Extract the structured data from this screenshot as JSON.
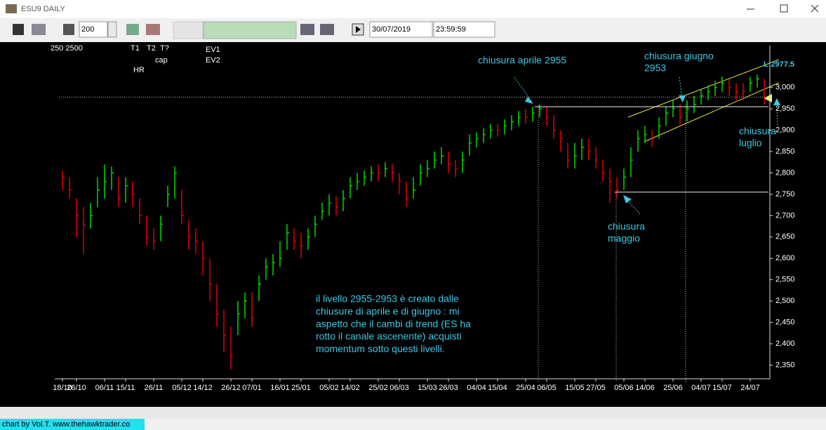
{
  "window": {
    "title": "ESU9 DAILY",
    "bars": "200",
    "date": "30/07/2019",
    "time": "23:59:59",
    "footer": "chart by Vol.T. www.thehawktrader.co",
    "tools": [
      "250 2500",
      "T1",
      "T2",
      "T?",
      "EV1",
      "EV2",
      "HR",
      "cap"
    ]
  },
  "chart_data": {
    "type": "ohlc",
    "xlim": [
      -0.5,
      100.5
    ],
    "xticks": [
      {
        "value": 0,
        "label": "18/10"
      },
      {
        "value": 2,
        "label": "26/10"
      },
      {
        "value": 6,
        "label": "06/11"
      },
      {
        "value": 9,
        "label": "15/11"
      },
      {
        "value": 13,
        "label": "26/11"
      },
      {
        "value": 17,
        "label": "05/12"
      },
      {
        "value": 20,
        "label": "14/12"
      },
      {
        "value": 24,
        "label": "26/12"
      },
      {
        "value": 27,
        "label": "07/01"
      },
      {
        "value": 31,
        "label": "16/01"
      },
      {
        "value": 34,
        "label": "25/01"
      },
      {
        "value": 38,
        "label": "05/02"
      },
      {
        "value": 41,
        "label": "14/02"
      },
      {
        "value": 45,
        "label": "25/02"
      },
      {
        "value": 48,
        "label": "06/03"
      },
      {
        "value": 52,
        "label": "15/03"
      },
      {
        "value": 55,
        "label": "26/03"
      },
      {
        "value": 59,
        "label": "04/04"
      },
      {
        "value": 62,
        "label": "15/04"
      },
      {
        "value": 66,
        "label": "25/04"
      },
      {
        "value": 69,
        "label": "06/05"
      },
      {
        "value": 73,
        "label": "15/05"
      },
      {
        "value": 76,
        "label": "27/05"
      },
      {
        "value": 80,
        "label": "05/06"
      },
      {
        "value": 83,
        "label": "14/06"
      },
      {
        "value": 87,
        "label": "25/06"
      },
      {
        "value": 91,
        "label": "04/07"
      },
      {
        "value": 94,
        "label": "15/07"
      },
      {
        "value": 98,
        "label": "24/07"
      }
    ],
    "ylim": [
      2318,
      3098
    ],
    "yticks": [
      {
        "value": 2350,
        "label": "2,350"
      },
      {
        "value": 2400,
        "label": "2,400"
      },
      {
        "value": 2450,
        "label": "2,450"
      },
      {
        "value": 2500,
        "label": "2,500"
      },
      {
        "value": 2550,
        "label": "2,550"
      },
      {
        "value": 2600,
        "label": "2,600"
      },
      {
        "value": 2650,
        "label": "2,650"
      },
      {
        "value": 2700,
        "label": "2,700"
      },
      {
        "value": 2750,
        "label": "2,750"
      },
      {
        "value": 2800,
        "label": "2,800"
      },
      {
        "value": 2850,
        "label": "2,850"
      },
      {
        "value": 2900,
        "label": "2,900"
      },
      {
        "value": 2950,
        "label": "2,950"
      },
      {
        "value": 3000,
        "label": "3,000"
      }
    ],
    "up_color": "#00d800",
    "down_color": "#e00000",
    "high": [
      2805,
      2790,
      2740,
      2720,
      2730,
      2790,
      2820,
      2815,
      2790,
      2790,
      2780,
      2740,
      2700,
      2670,
      2700,
      2770,
      2815,
      2760,
      2690,
      2670,
      2640,
      2600,
      2540,
      2480,
      2440,
      2500,
      2520,
      2520,
      2560,
      2600,
      2610,
      2640,
      2680,
      2670,
      2660,
      2670,
      2700,
      2730,
      2750,
      2745,
      2760,
      2790,
      2800,
      2805,
      2815,
      2820,
      2825,
      2820,
      2800,
      2780,
      2790,
      2820,
      2830,
      2850,
      2860,
      2850,
      2830,
      2850,
      2890,
      2895,
      2905,
      2915,
      2915,
      2925,
      2935,
      2945,
      2950,
      2955,
      2960,
      2955,
      2935,
      2900,
      2870,
      2870,
      2880,
      2880,
      2860,
      2830,
      2810,
      2790,
      2810,
      2860,
      2900,
      2910,
      2900,
      2930,
      2955,
      2970,
      2960,
      2970,
      2980,
      2995,
      3005,
      3015,
      3025,
      3020,
      3010,
      3010,
      3025,
      3030,
      3020
    ],
    "low": [
      2760,
      2740,
      2650,
      2610,
      2670,
      2720,
      2740,
      2760,
      2720,
      2730,
      2720,
      2680,
      2630,
      2620,
      2640,
      2720,
      2740,
      2680,
      2620,
      2610,
      2560,
      2500,
      2440,
      2380,
      2340,
      2420,
      2460,
      2440,
      2500,
      2550,
      2560,
      2580,
      2620,
      2620,
      2600,
      2620,
      2650,
      2690,
      2700,
      2700,
      2710,
      2740,
      2760,
      2770,
      2780,
      2780,
      2790,
      2780,
      2750,
      2720,
      2740,
      2770,
      2790,
      2810,
      2820,
      2800,
      2790,
      2800,
      2840,
      2860,
      2870,
      2880,
      2885,
      2890,
      2900,
      2910,
      2915,
      2920,
      2930,
      2910,
      2880,
      2850,
      2810,
      2810,
      2830,
      2830,
      2810,
      2780,
      2730,
      2740,
      2760,
      2790,
      2850,
      2870,
      2860,
      2880,
      2910,
      2930,
      2910,
      2920,
      2940,
      2960,
      2970,
      2980,
      2990,
      2980,
      2970,
      2970,
      2990,
      3000,
      2960
    ],
    "close": [
      2790,
      2760,
      2700,
      2680,
      2700,
      2760,
      2780,
      2800,
      2740,
      2770,
      2750,
      2700,
      2650,
      2640,
      2680,
      2750,
      2800,
      2700,
      2650,
      2640,
      2600,
      2540,
      2470,
      2420,
      2370,
      2470,
      2500,
      2460,
      2540,
      2580,
      2590,
      2600,
      2660,
      2640,
      2630,
      2650,
      2680,
      2710,
      2730,
      2720,
      2740,
      2770,
      2780,
      2790,
      2800,
      2800,
      2810,
      2800,
      2780,
      2740,
      2760,
      2800,
      2810,
      2830,
      2840,
      2820,
      2810,
      2830,
      2870,
      2880,
      2890,
      2900,
      2900,
      2910,
      2920,
      2930,
      2930,
      2940,
      2950,
      2930,
      2900,
      2880,
      2830,
      2840,
      2860,
      2850,
      2830,
      2800,
      2780,
      2760,
      2790,
      2830,
      2880,
      2890,
      2880,
      2910,
      2940,
      2950,
      2930,
      2950,
      2960,
      2980,
      2990,
      3000,
      3010,
      3000,
      2990,
      2990,
      3010,
      3020,
      2977
    ],
    "levels": [
      2955,
      2755
    ],
    "last_price": {
      "value": 2977.5,
      "label": "L:2977.5"
    },
    "annotations": [
      [
        "chiusura aprile 2955"
      ],
      [
        "chiusura giugno",
        "2953"
      ],
      [
        "chiusura",
        "luglio"
      ],
      [
        "chiusura",
        "maggio"
      ],
      [
        "il livello 2955-2953 è creato dalle",
        "chiusure di aprile e di giugno : mi",
        "aspetto che il cambi di trend (ES ha",
        "rotto il canale ascenente) acquisti",
        "momentum sotto questi livelli."
      ]
    ]
  }
}
